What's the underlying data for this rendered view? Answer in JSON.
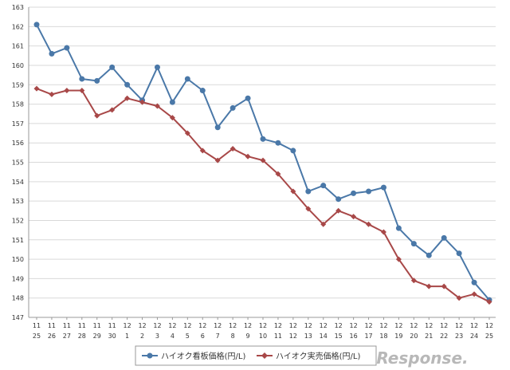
{
  "chart_data": {
    "type": "line",
    "title": "",
    "xlabel": "",
    "ylabel": "",
    "ylim": [
      147,
      163
    ],
    "y_ticks": [
      "147",
      "148",
      "149",
      "150",
      "151",
      "152",
      "153",
      "154",
      "155",
      "156",
      "157",
      "158",
      "159",
      "160",
      "161",
      "162",
      "163"
    ],
    "x_labels_month": [
      "11",
      "11",
      "11",
      "11",
      "11",
      "11",
      "12",
      "12",
      "12",
      "12",
      "12",
      "12",
      "12",
      "12",
      "12",
      "12",
      "12",
      "12",
      "12",
      "12",
      "12",
      "12",
      "12",
      "12",
      "12",
      "12",
      "12",
      "12",
      "12",
      "12",
      "12"
    ],
    "x_labels_day": [
      "25",
      "26",
      "27",
      "28",
      "29",
      "30",
      "1",
      "2",
      "3",
      "4",
      "5",
      "6",
      "7",
      "8",
      "9",
      "10",
      "11",
      "12",
      "13",
      "14",
      "15",
      "16",
      "17",
      "18",
      "19",
      "20",
      "21",
      "22",
      "23",
      "24",
      "25"
    ],
    "series": [
      {
        "name": "ハイオク看板価格(円/L)",
        "color": "#4a78a8",
        "marker": "circle",
        "values": [
          162.1,
          160.6,
          160.9,
          159.3,
          159.2,
          159.9,
          159.0,
          158.2,
          159.9,
          158.1,
          159.3,
          158.7,
          156.8,
          157.8,
          158.3,
          156.2,
          156.0,
          155.6,
          153.5,
          153.8,
          153.1,
          153.4,
          153.5,
          153.7,
          151.6,
          150.8,
          150.2,
          151.1,
          150.3,
          148.8,
          147.9
        ]
      },
      {
        "name": "ハイオク実売価格(円/L)",
        "color": "#a84848",
        "marker": "diamond",
        "values": [
          158.8,
          158.5,
          158.7,
          158.7,
          157.4,
          157.7,
          158.3,
          158.1,
          157.9,
          157.3,
          156.5,
          155.6,
          155.1,
          155.7,
          155.3,
          155.1,
          154.4,
          153.5,
          152.6,
          151.8,
          152.5,
          152.2,
          151.8,
          151.4,
          150.0,
          148.9,
          148.6,
          148.6,
          148.0,
          148.2,
          147.8
        ]
      }
    ],
    "legend_position": "bottom-center",
    "grid": true
  },
  "watermark": {
    "text": "Response."
  }
}
